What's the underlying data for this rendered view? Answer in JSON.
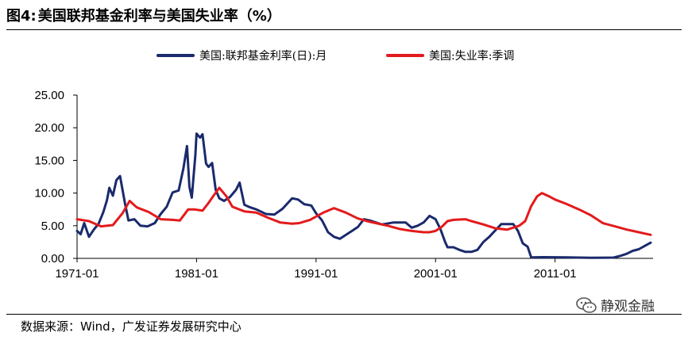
{
  "figure": {
    "title_prefix": "图4:",
    "title_text": "美国联邦基金利率与美国失业率（%）"
  },
  "source_text": "数据来源：Wind，广发证券发展研究中心",
  "watermark_text": "静观金融",
  "chart_data": {
    "type": "line",
    "title": "美国联邦基金利率与美国失业率（%）",
    "xlabel": "",
    "ylabel": "",
    "x_range": [
      1971.0,
      2019.2
    ],
    "ylim": [
      0,
      25
    ],
    "y_ticks": [
      "0.00",
      "5.00",
      "10.00",
      "15.00",
      "20.00",
      "25.00"
    ],
    "y_tick_values": [
      0,
      5,
      10,
      15,
      20,
      25
    ],
    "x_ticks": [
      "1971-01",
      "1981-01",
      "1991-01",
      "2001-01",
      "2011-01"
    ],
    "x_tick_values": [
      1971,
      1981,
      1991,
      2001,
      2011
    ],
    "legend_position": "top",
    "series": [
      {
        "name": "美国:联邦基金利率(日):月",
        "color": "#1a2a6c",
        "x": [
          1971.0,
          1971.3,
          1971.6,
          1972.0,
          1972.4,
          1972.8,
          1973.2,
          1973.5,
          1973.7,
          1974.0,
          1974.3,
          1974.6,
          1975.0,
          1975.3,
          1975.8,
          1976.3,
          1976.9,
          1977.5,
          1978.0,
          1978.5,
          1979.0,
          1979.5,
          1979.9,
          1980.2,
          1980.4,
          1980.6,
          1980.9,
          1981.0,
          1981.3,
          1981.5,
          1981.8,
          1982.0,
          1982.3,
          1982.6,
          1982.9,
          1983.3,
          1983.8,
          1984.3,
          1984.6,
          1985.0,
          1985.5,
          1986.0,
          1986.8,
          1987.5,
          1988.2,
          1989.0,
          1989.5,
          1990.0,
          1990.6,
          1991.0,
          1991.5,
          1992.0,
          1992.5,
          1993.0,
          1994.0,
          1994.5,
          1995.0,
          1995.5,
          1996.5,
          1997.5,
          1998.5,
          1999.0,
          1999.5,
          2000.0,
          2000.5,
          2001.0,
          2001.4,
          2001.8,
          2002.0,
          2002.5,
          2003.0,
          2003.5,
          2004.0,
          2004.5,
          2005.0,
          2005.5,
          2006.0,
          2006.5,
          2007.0,
          2007.5,
          2007.9,
          2008.3,
          2008.7,
          2009.0,
          2010.0,
          2012.0,
          2014.0,
          2015.9,
          2016.5,
          2017.0,
          2017.5,
          2018.0,
          2018.5,
          2019.0
        ],
        "values": [
          4.2,
          3.7,
          5.4,
          3.3,
          4.4,
          5.3,
          7.1,
          8.9,
          10.8,
          9.6,
          12.0,
          12.6,
          8.5,
          5.8,
          6.0,
          5.0,
          4.9,
          5.4,
          6.8,
          7.9,
          10.1,
          10.4,
          13.8,
          17.2,
          11.0,
          9.3,
          15.8,
          19.1,
          18.5,
          19.0,
          14.5,
          14.0,
          14.6,
          10.5,
          9.2,
          8.8,
          9.4,
          10.5,
          11.6,
          8.2,
          7.8,
          7.5,
          6.8,
          6.7,
          7.6,
          9.2,
          9.0,
          8.3,
          8.1,
          6.9,
          5.8,
          4.0,
          3.3,
          3.0,
          4.2,
          4.8,
          6.0,
          5.8,
          5.2,
          5.5,
          5.5,
          4.7,
          5.0,
          5.5,
          6.5,
          6.0,
          4.5,
          2.5,
          1.7,
          1.7,
          1.3,
          1.0,
          1.0,
          1.3,
          2.5,
          3.3,
          4.3,
          5.25,
          5.25,
          5.26,
          4.2,
          2.3,
          1.8,
          0.16,
          0.18,
          0.15,
          0.09,
          0.12,
          0.4,
          0.7,
          1.15,
          1.4,
          1.9,
          2.4
        ]
      },
      {
        "name": "美国:失业率:季调",
        "color": "#e31a1c",
        "x": [
          1971.0,
          1972.0,
          1973.0,
          1974.0,
          1974.8,
          1975.4,
          1976.0,
          1977.0,
          1978.0,
          1979.0,
          1979.6,
          1980.3,
          1980.8,
          1981.5,
          1982.0,
          1982.5,
          1982.9,
          1983.5,
          1984.0,
          1985.0,
          1986.0,
          1987.0,
          1988.0,
          1989.0,
          1989.6,
          1990.5,
          1991.0,
          1991.6,
          1992.5,
          1993.5,
          1994.5,
          1995.5,
          1997.0,
          1998.0,
          1999.0,
          2000.0,
          2000.5,
          2001.0,
          2001.5,
          2002.0,
          2002.5,
          2003.5,
          2004.0,
          2005.0,
          2006.0,
          2007.0,
          2008.0,
          2008.5,
          2009.0,
          2009.5,
          2009.9,
          2010.5,
          2011.0,
          2012.0,
          2013.0,
          2014.0,
          2015.0,
          2016.0,
          2017.0,
          2018.0,
          2018.5,
          2019.0
        ],
        "values": [
          6.0,
          5.7,
          4.9,
          5.1,
          6.9,
          8.8,
          7.8,
          7.1,
          6.0,
          5.9,
          5.8,
          7.5,
          7.5,
          7.3,
          8.5,
          9.8,
          10.8,
          9.5,
          7.9,
          7.2,
          7.0,
          6.2,
          5.5,
          5.3,
          5.4,
          5.9,
          6.4,
          7.0,
          7.7,
          7.0,
          6.1,
          5.6,
          5.0,
          4.5,
          4.2,
          4.0,
          4.0,
          4.2,
          4.8,
          5.7,
          5.9,
          6.0,
          5.7,
          5.2,
          4.6,
          4.4,
          5.0,
          5.7,
          8.0,
          9.5,
          10.0,
          9.5,
          9.0,
          8.3,
          7.5,
          6.6,
          5.4,
          4.9,
          4.4,
          4.0,
          3.8,
          3.6
        ]
      }
    ]
  }
}
